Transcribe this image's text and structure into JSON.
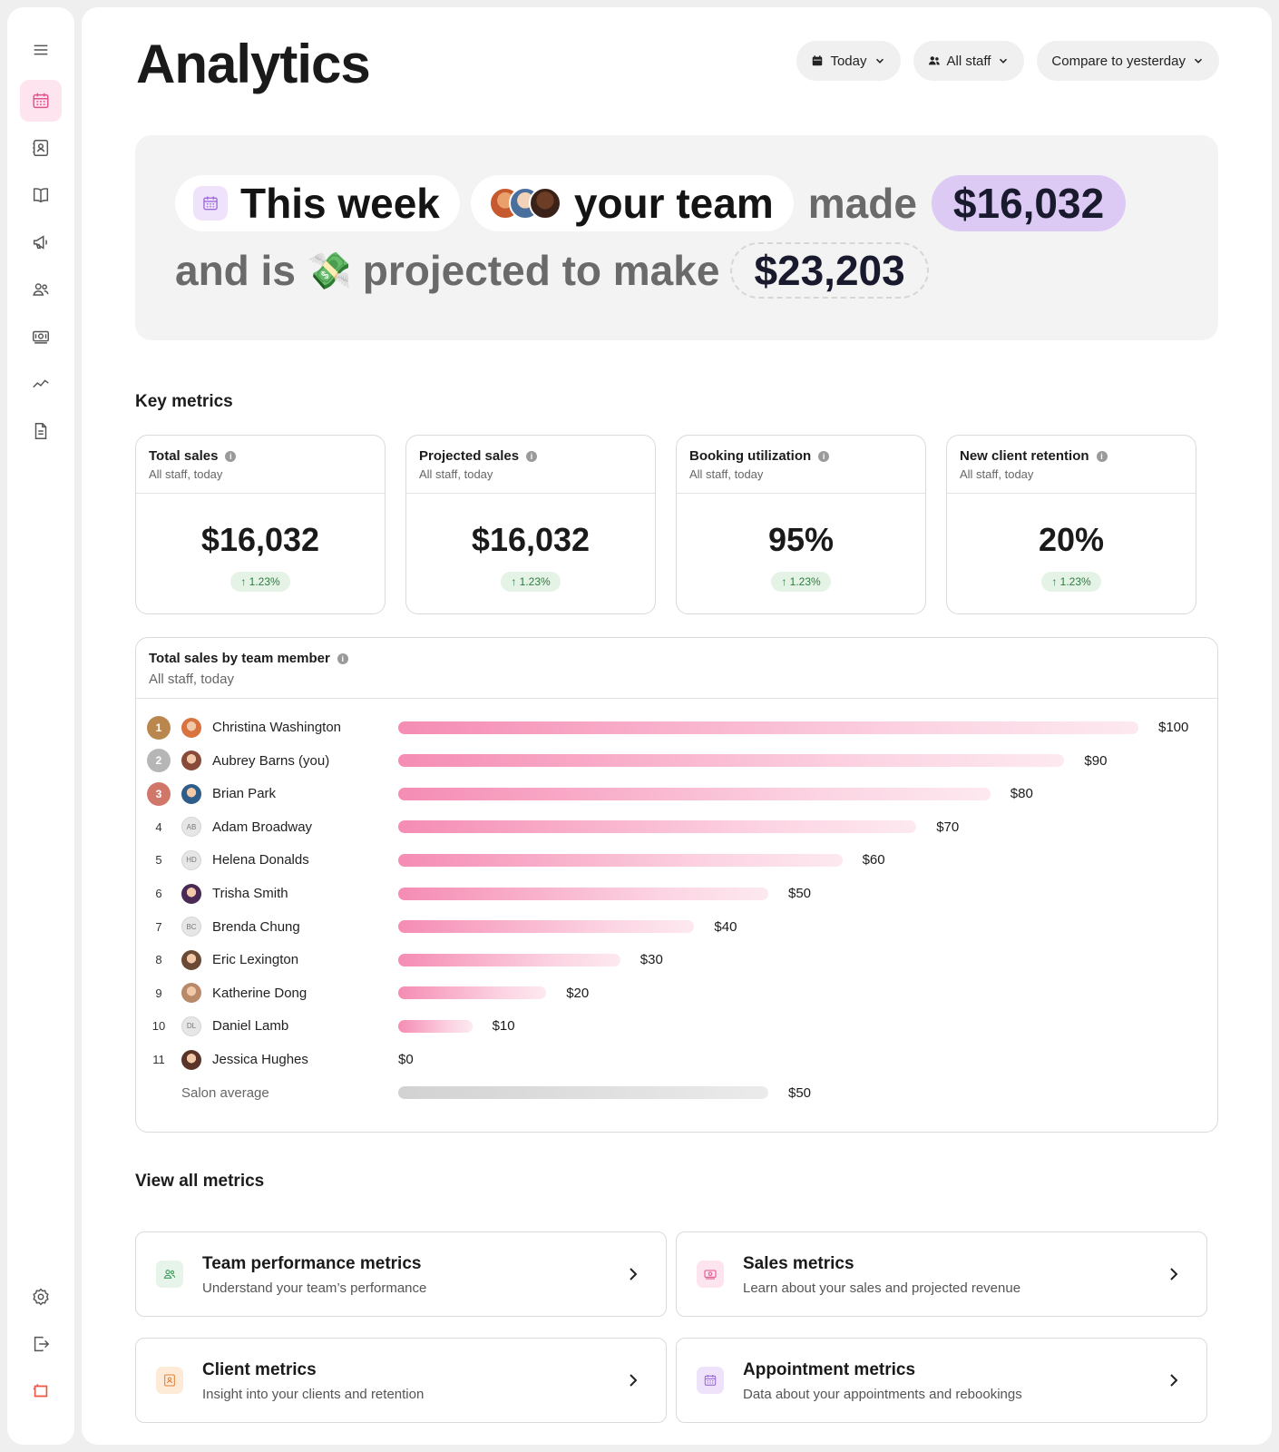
{
  "sidebar": {
    "items": [
      {
        "icon": "menu-icon"
      },
      {
        "icon": "calendar-icon",
        "active": true
      },
      {
        "icon": "contacts-icon"
      },
      {
        "icon": "book-icon"
      },
      {
        "icon": "megaphone-icon"
      },
      {
        "icon": "team-icon"
      },
      {
        "icon": "money-icon"
      },
      {
        "icon": "trend-icon"
      },
      {
        "icon": "document-icon"
      }
    ],
    "bottom": [
      {
        "icon": "gear-icon"
      },
      {
        "icon": "logout-icon"
      },
      {
        "icon": "brand-logo-icon"
      }
    ]
  },
  "header": {
    "title": "Analytics",
    "filters": {
      "date": "Today",
      "staff": "All staff",
      "compare": "Compare to yesterday"
    }
  },
  "hero": {
    "period": "This week",
    "subject": "your team",
    "verb": "made",
    "made_amount": "$16,032",
    "and_is": "and is",
    "emoji": "💸",
    "projected_text": "projected to make",
    "projected_amount": "$23,203"
  },
  "key_metrics": {
    "title": "Key metrics",
    "cards": [
      {
        "name": "Total sales",
        "sub": "All staff, today",
        "value": "$16,032",
        "delta": "↑ 1.23%"
      },
      {
        "name": "Projected sales",
        "sub": "All staff, today",
        "value": "$16,032",
        "delta": "↑ 1.23%"
      },
      {
        "name": "Booking utilization",
        "sub": "All staff, today",
        "value": "95%",
        "delta": "↑ 1.23%"
      },
      {
        "name": "New client retention",
        "sub": "All staff, today",
        "value": "20%",
        "delta": "↑ 1.23%"
      }
    ]
  },
  "team_sales": {
    "title": "Total sales by team member",
    "sub": "All staff, today",
    "max": 100,
    "rows": [
      {
        "rank": "1",
        "name": "Christina Washington",
        "value": 100,
        "label": "$100",
        "initials": ""
      },
      {
        "rank": "2",
        "name": "Aubrey Barns (you)",
        "value": 90,
        "label": "$90",
        "initials": ""
      },
      {
        "rank": "3",
        "name": "Brian Park",
        "value": 80,
        "label": "$80",
        "initials": ""
      },
      {
        "rank": "4",
        "name": "Adam Broadway",
        "value": 70,
        "label": "$70",
        "initials": "AB"
      },
      {
        "rank": "5",
        "name": "Helena Donalds",
        "value": 60,
        "label": "$60",
        "initials": "HD"
      },
      {
        "rank": "6",
        "name": "Trisha Smith",
        "value": 50,
        "label": "$50",
        "initials": ""
      },
      {
        "rank": "7",
        "name": "Brenda Chung",
        "value": 40,
        "label": "$40",
        "initials": "BC"
      },
      {
        "rank": "8",
        "name": "Eric Lexington",
        "value": 30,
        "label": "$30",
        "initials": ""
      },
      {
        "rank": "9",
        "name": "Katherine Dong",
        "value": 20,
        "label": "$20",
        "initials": ""
      },
      {
        "rank": "10",
        "name": "Daniel Lamb",
        "value": 10,
        "label": "$10",
        "initials": "DL"
      },
      {
        "rank": "11",
        "name": "Jessica Hughes",
        "value": 0,
        "label": "$0",
        "initials": ""
      }
    ],
    "average": {
      "name": "Salon average",
      "value": 50,
      "label": "$50"
    }
  },
  "view_all": {
    "title": "View all metrics",
    "cards": [
      {
        "title": "Team performance metrics",
        "desc": "Understand your team’s performance",
        "icon": "team-icon",
        "color": "#e6f4ea"
      },
      {
        "title": "Sales metrics",
        "desc": "Learn about your sales and projected revenue",
        "icon": "money-icon",
        "color": "#fde4ee"
      },
      {
        "title": "Client metrics",
        "desc": "Insight into your clients and retention",
        "icon": "contacts-icon",
        "color": "#fdebd8"
      },
      {
        "title": "Appointment metrics",
        "desc": "Data about your appointments and rebookings",
        "icon": "calendar-icon",
        "color": "#efe3fb"
      }
    ]
  }
}
